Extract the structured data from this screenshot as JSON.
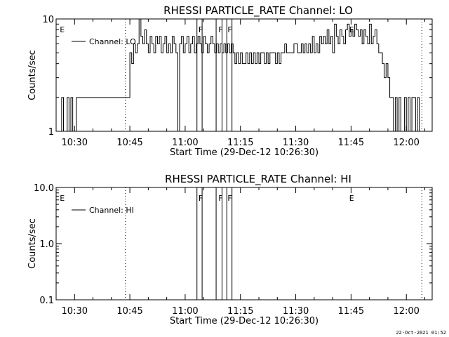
{
  "footer": {
    "timestamp": "22-Oct-2021 01:52"
  },
  "chart_data": [
    {
      "type": "line",
      "title": "RHESSI PARTICLE_RATE Channel: LO",
      "xlabel": "Start Time (29-Dec-12 10:26:30)",
      "ylabel": "Counts/sec",
      "yscale": "log",
      "ylim": [
        1,
        10
      ],
      "ytick_labels": [
        "1",
        "10"
      ],
      "xlim": [
        "10:25:00",
        "12:07:00"
      ],
      "xtick_labels": [
        "10:30",
        "10:45",
        "11:00",
        "11:15",
        "11:30",
        "11:45",
        "12:00"
      ],
      "legend": {
        "position": "top-left",
        "entries": [
          "Channel: LO"
        ]
      },
      "series": [
        {
          "name": "Channel: LO",
          "x_minutes_after_1030": [
            -4,
            -3.5,
            -3,
            -2.5,
            -2,
            -1.5,
            -1,
            -0.5,
            0,
            0.5,
            1,
            1.5,
            2,
            2.5,
            3,
            3.5,
            4,
            4.5,
            5,
            5.5,
            6,
            6.5,
            7,
            7.5,
            8,
            8.5,
            9,
            9.5,
            10,
            10.5,
            11,
            11.5,
            12,
            12.5,
            13,
            13.5,
            14,
            14.5,
            15,
            15.5,
            16,
            16.5,
            17,
            17.5,
            18,
            18.5,
            19,
            19.5,
            20,
            20.5,
            21,
            21.5,
            22,
            22.5,
            23,
            23.5,
            24,
            24.5,
            25,
            25.5,
            26,
            26.5,
            27,
            27.5,
            28,
            28.5,
            29,
            29.5,
            30,
            30.5,
            31,
            31.5,
            32,
            32.5,
            33,
            33.5,
            34,
            34.5,
            35,
            35.5,
            36,
            36.5,
            37,
            37.5,
            38,
            38.5,
            39,
            39.5,
            40,
            40.5,
            41,
            41.5,
            42,
            42.5,
            43,
            43.5,
            44,
            44.5,
            45,
            45.5,
            46,
            46.5,
            47,
            47.5,
            48,
            48.5,
            49,
            49.5,
            50,
            50.5,
            51,
            51.5,
            52,
            52.5,
            53,
            53.5,
            54,
            54.5,
            55,
            55.5,
            56,
            56.5,
            57,
            57.5,
            58,
            58.5,
            59,
            59.5,
            60,
            60.5,
            61,
            61.5,
            62,
            62.5,
            63,
            63.5,
            64,
            64.5,
            65,
            65.5,
            66,
            66.5,
            67,
            67.5,
            68,
            68.5,
            69,
            69.5,
            70,
            70.5,
            71,
            71.5,
            72,
            72.5,
            73,
            73.5,
            74,
            74.5,
            75,
            75.5,
            76,
            76.5,
            77,
            77.5,
            78,
            78.5,
            79,
            79.5,
            80,
            80.5,
            81,
            81.5,
            82,
            82.5,
            83,
            83.5,
            84,
            84.5,
            85,
            85.5,
            86,
            86.5,
            87,
            87.5,
            88,
            88.5,
            89,
            89.5,
            90,
            90.5,
            91,
            91.5,
            92,
            92.5,
            93,
            93.5,
            94
          ],
          "values": [
            1,
            2,
            1,
            1,
            2,
            1,
            2,
            1,
            1,
            2,
            2,
            2,
            2,
            2,
            2,
            2,
            2,
            2,
            2,
            2,
            2,
            2,
            2,
            2,
            2,
            2,
            2,
            2,
            2,
            2,
            2,
            2,
            2,
            2,
            2,
            2,
            2,
            2,
            5,
            4,
            6,
            5,
            6,
            10,
            7,
            6,
            8,
            6,
            5,
            7,
            6,
            5,
            7,
            6,
            7,
            5,
            6,
            7,
            5,
            6,
            5,
            7,
            6,
            5,
            1,
            6,
            7,
            5,
            6,
            7,
            5,
            6,
            7,
            5,
            6,
            7,
            6,
            5,
            7,
            6,
            5,
            6,
            7,
            6,
            5,
            6,
            5,
            6,
            5,
            6,
            5,
            6,
            5,
            6,
            5,
            4,
            5,
            4,
            5,
            4,
            4,
            5,
            4,
            5,
            4,
            5,
            4,
            5,
            4,
            5,
            5,
            4,
            5,
            4,
            5,
            5,
            5,
            4,
            5,
            4,
            5,
            5,
            6,
            5,
            5,
            5,
            5,
            6,
            6,
            5,
            5,
            6,
            5,
            6,
            5,
            6,
            5,
            7,
            5,
            6,
            5,
            7,
            6,
            7,
            6,
            8,
            6,
            7,
            5,
            9,
            7,
            6,
            8,
            7,
            6,
            8,
            9,
            7,
            8,
            7,
            9,
            8,
            7,
            8,
            6,
            8,
            7,
            6,
            9,
            6,
            7,
            8,
            6,
            5,
            5,
            4,
            3,
            4,
            3,
            2,
            2,
            1,
            2,
            1,
            2,
            1,
            1,
            2,
            1,
            2,
            1,
            2,
            2,
            1,
            2,
            1,
            1
          ]
        }
      ]
    },
    {
      "type": "line",
      "title": "RHESSI PARTICLE_RATE Channel: HI",
      "xlabel": "Start Time (29-Dec-12 10:26:30)",
      "ylabel": "Counts/sec",
      "yscale": "log",
      "ylim": [
        0.1,
        10
      ],
      "ytick_labels": [
        "0.1",
        "1.0",
        "10.0"
      ],
      "xlim": [
        "10:25:00",
        "12:07:00"
      ],
      "xtick_labels": [
        "10:30",
        "10:45",
        "11:00",
        "11:15",
        "11:30",
        "11:45",
        "12:00"
      ],
      "legend": {
        "position": "top-left",
        "entries": [
          "Channel: HI"
        ]
      },
      "series": [
        {
          "name": "Channel: HI",
          "values": []
        }
      ]
    }
  ],
  "markers": {
    "dotted_lines_minutes_after_1030": [
      13.8,
      94.2
    ],
    "solid_lines_minutes_after_1030": [
      33.2,
      34.6,
      38.4,
      40.0,
      41.3,
      42.7
    ],
    "labels": [
      {
        "text": "E",
        "minutes_after_1030": -4.0
      },
      {
        "text": "F",
        "minutes_after_1030": 33.6
      },
      {
        "text": "F",
        "minutes_after_1030": 39.0
      },
      {
        "text": "F",
        "minutes_after_1030": 41.5
      },
      {
        "text": "E",
        "minutes_after_1030": 74.5
      }
    ]
  }
}
